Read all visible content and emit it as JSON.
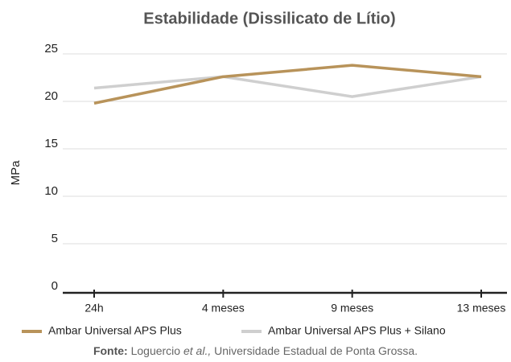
{
  "chart_data": {
    "type": "line",
    "title": "Estabilidade (Dissilicato de Lítio)",
    "y_label": "MPa",
    "categories": [
      "24h",
      "4 meses",
      "9 meses",
      "13 meses"
    ],
    "series": [
      {
        "name": "Ambar Universal APS Plus",
        "color": "#b8935a",
        "values": [
          19.8,
          22.6,
          23.8,
          22.6
        ]
      },
      {
        "name": "Ambar Universal APS Plus + Silano",
        "color": "#cfcfcf",
        "values": [
          21.4,
          22.6,
          20.5,
          22.6
        ]
      }
    ],
    "ylim": [
      0,
      25
    ],
    "yticks": [
      0,
      5,
      10,
      15,
      20,
      25
    ],
    "grid": true,
    "legend": "bottom"
  },
  "footer": {
    "label": "Fonte:",
    "authors": "Loguercio",
    "etal": "et al.,",
    "institution": "Universidade Estadual de Ponta Grossa."
  }
}
